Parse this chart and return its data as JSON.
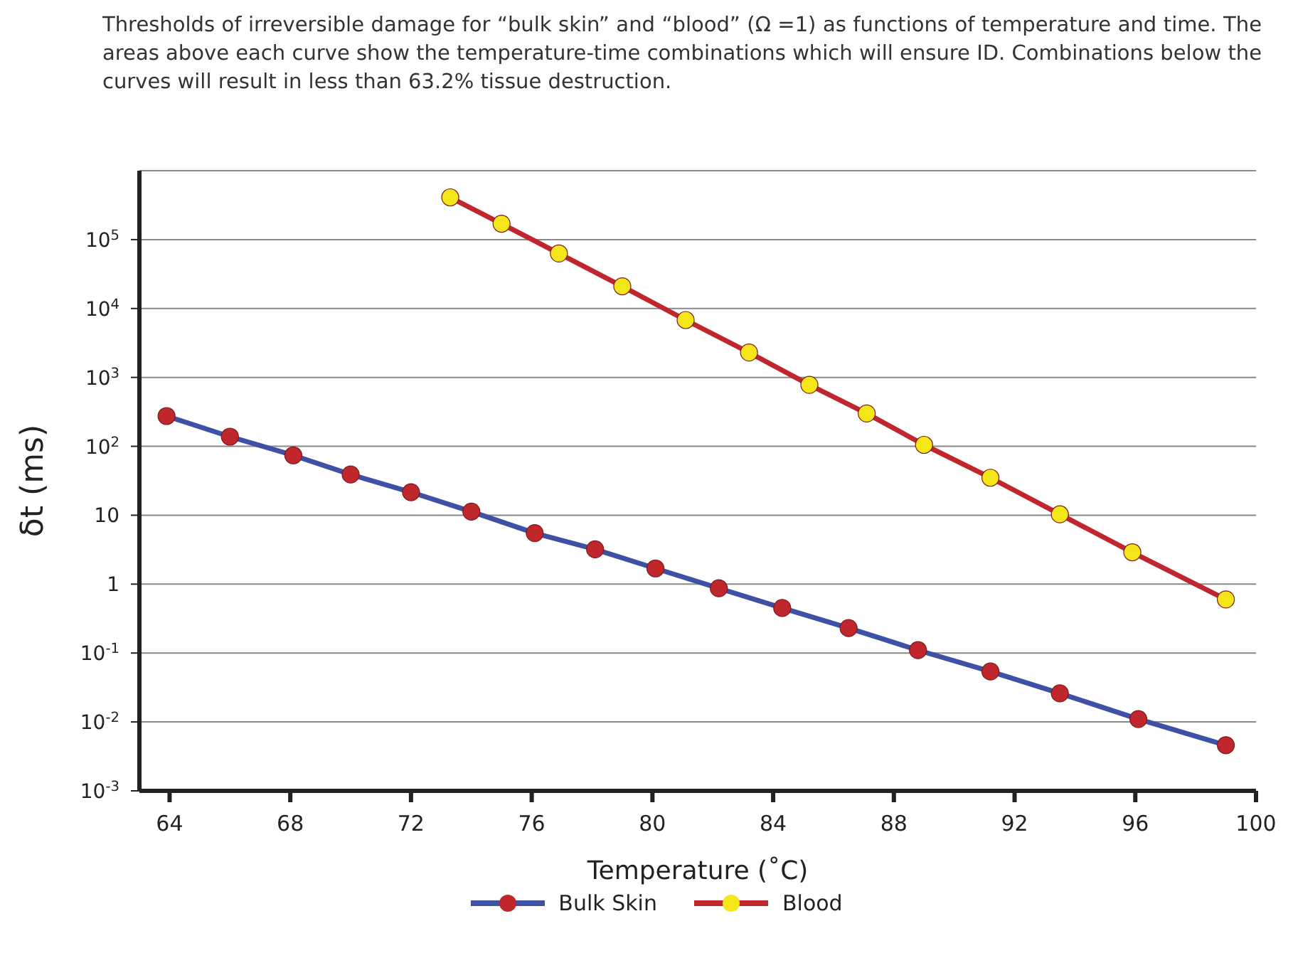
{
  "chart_data": {
    "type": "line",
    "title": "Thresholds of irreversible damage for “bulk skin” and “blood” (Ω =1) as functions of temperature and time. The areas above each curve show the temperature-time combinations which will ensure ID. Combinations below the curves will result in less than 63.2% tissue destruction.",
    "xlabel": "Temperature (˚C)",
    "ylabel": "δt (ms)",
    "log": "y",
    "grid": "y",
    "legend": "bottom",
    "marker": "circle",
    "line_style": "solid",
    "xlim": [
      63,
      100
    ],
    "xticks": [
      64,
      68,
      72,
      76,
      80,
      84,
      88,
      92,
      96,
      100
    ],
    "ylim": [
      0.001,
      1000000
    ],
    "yticks": [
      {
        "value": 0.001,
        "label": "10$^{-3}$"
      },
      {
        "value": 0.01,
        "label": "10$^{-2}$"
      },
      {
        "value": 0.1,
        "label": "10$^{-1}$"
      },
      1,
      10,
      {
        "value": 100,
        "label": "10$^{2}$"
      },
      {
        "value": 1000,
        "label": "10$^{3}$"
      },
      {
        "value": 10000,
        "label": "10$^{4}$"
      },
      {
        "value": 100000,
        "label": "10$^{5}$"
      }
    ],
    "series": [
      {
        "name": "Bulk Skin",
        "color": "#3f51a5",
        "x": [
          63.9,
          66,
          68.1,
          70,
          72,
          74,
          76.1,
          78.1,
          80.1,
          82.2,
          84.3,
          86.5,
          88.8,
          91.2,
          93.5,
          96.1,
          99
        ],
        "values": [
          275,
          138,
          74,
          39,
          21.6,
          11.3,
          5.5,
          3.2,
          1.69,
          0.87,
          0.45,
          0.23,
          0.11,
          0.054,
          0.026,
          0.011,
          0.0046
        ],
        "colors": [
          "#c0272d",
          "#c0272d",
          "#c0272d",
          "#c0272d",
          "#c0272d",
          "#c0272d",
          "#c0272d",
          "#c0272d",
          "#c0272d",
          "#c0272d",
          "#c0272d",
          "#c0272d",
          "#c0272d",
          "#c0272d",
          "#c0272d",
          "#c0272d",
          "#c0272d"
        ]
      },
      {
        "name": "Blood",
        "color": "#c0272d",
        "x": [
          73.3,
          75,
          76.9,
          79,
          81.1,
          83.2,
          85.2,
          87.1,
          89,
          91.2,
          93.5,
          95.9,
          99
        ],
        "values": [
          410000,
          170000,
          63000,
          21000,
          6800,
          2300,
          780,
          300,
          105,
          35,
          10.3,
          2.9,
          0.6
        ],
        "colors": [
          "#f5e61a",
          "#f5e61a",
          "#f5e61a",
          "#f5e61a",
          "#f5e61a",
          "#f5e61a",
          "#f5e61a",
          "#f5e61a",
          "#f5e61a",
          "#f5e61a",
          "#f5e61a",
          "#f5e61a",
          "#f5e61a"
        ]
      }
    ]
  }
}
